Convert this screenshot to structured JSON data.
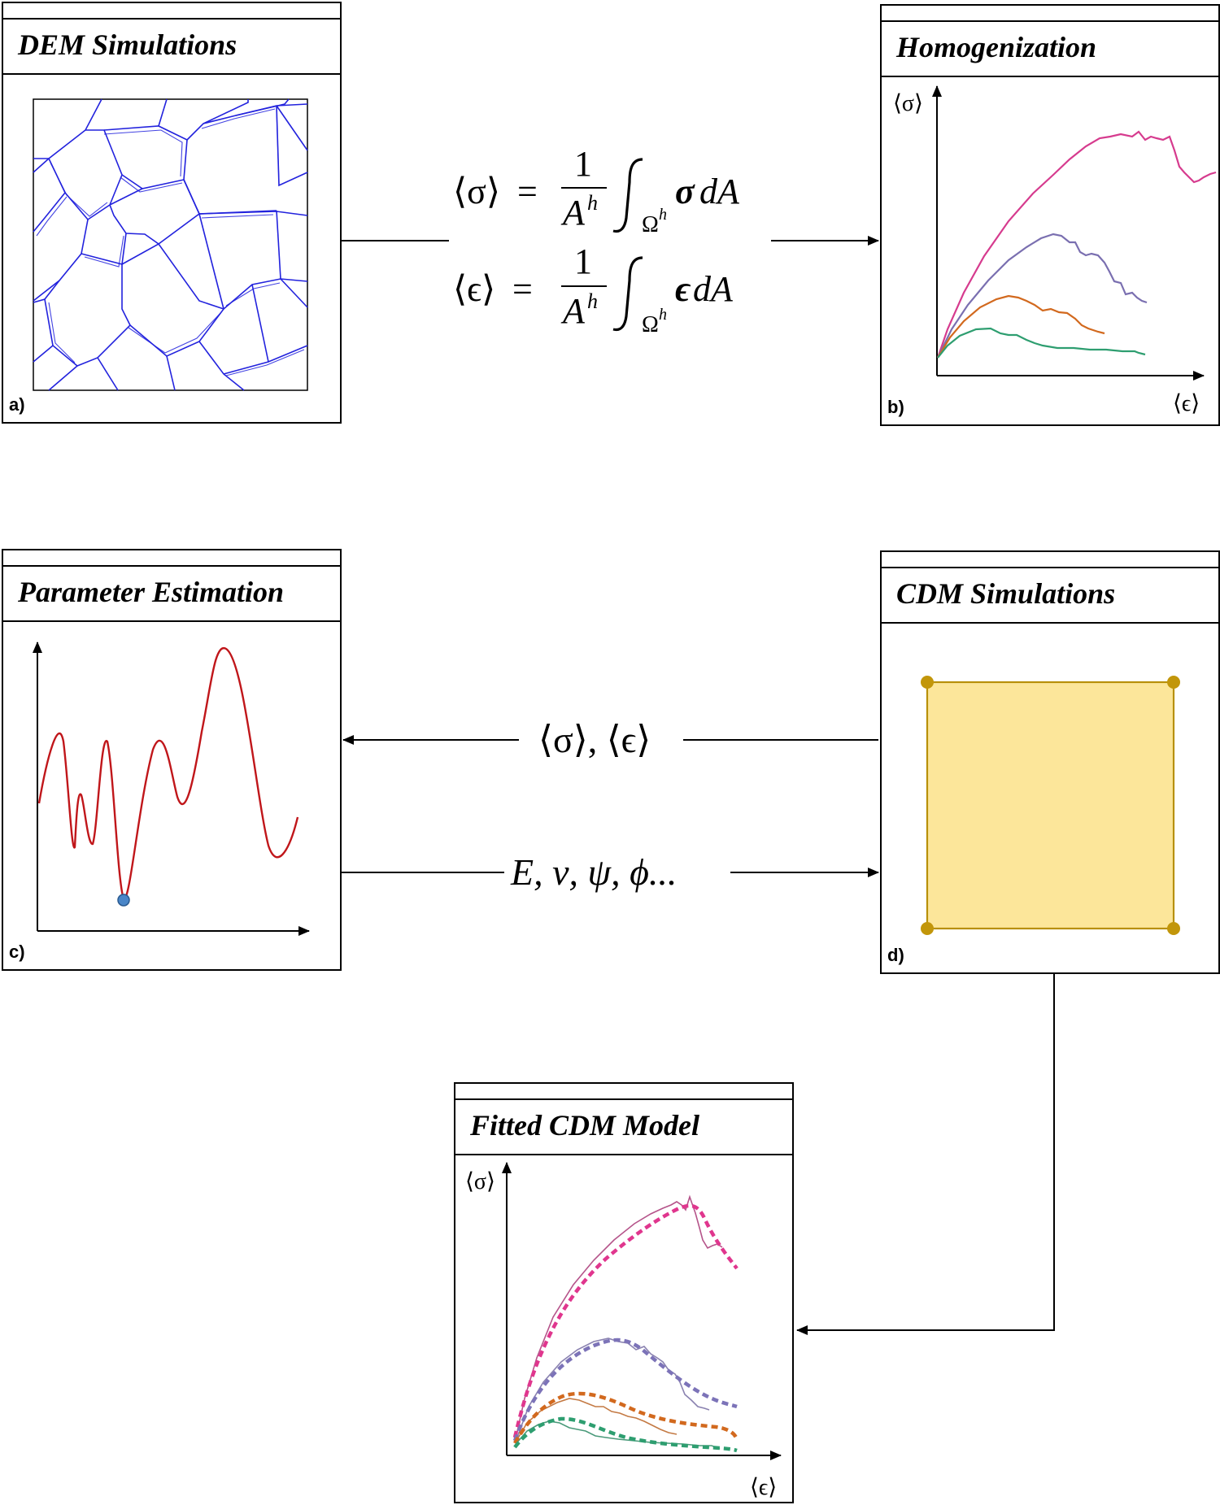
{
  "panels": {
    "a": {
      "title": "DEM Simulations",
      "label": "a)"
    },
    "b": {
      "title": "Homogenization",
      "label": "b)",
      "y_axis": "⟨σ⟩",
      "x_axis": "⟨ϵ⟩"
    },
    "c": {
      "title": "Parameter Estimation",
      "label": "c)"
    },
    "d": {
      "title": "CDM Simulations",
      "label": "d)"
    },
    "e": {
      "title": "Fitted CDM Model",
      "y_axis": "⟨σ⟩",
      "x_axis": "⟨ϵ⟩"
    }
  },
  "equations": {
    "stress": {
      "lhs": "⟨σ⟩",
      "rhs_var": "σ"
    },
    "strain": {
      "lhs": "⟨ϵ⟩",
      "rhs_var": "ϵ"
    },
    "numerator": "1",
    "area": "A",
    "area_sup": "h",
    "domain": "Ω",
    "domain_sup": "h",
    "dA": "dA",
    "equals": "="
  },
  "arrow_labels": {
    "to_estimation": "⟨σ⟩, ⟨ϵ⟩",
    "to_cdm": "E, ν, ψ, ϕ..."
  },
  "colors": {
    "curve1": "#d63b8e",
    "curve2": "#7a6fb0",
    "curve3": "#d2691e",
    "curve4": "#2e9e70",
    "grain_lines": "#2222dd",
    "optimization_curve": "#c0161a",
    "minimum_marker": "#4a86c8",
    "cdm_fill": "#fce69a",
    "cdm_edge": "#b8900a"
  }
}
